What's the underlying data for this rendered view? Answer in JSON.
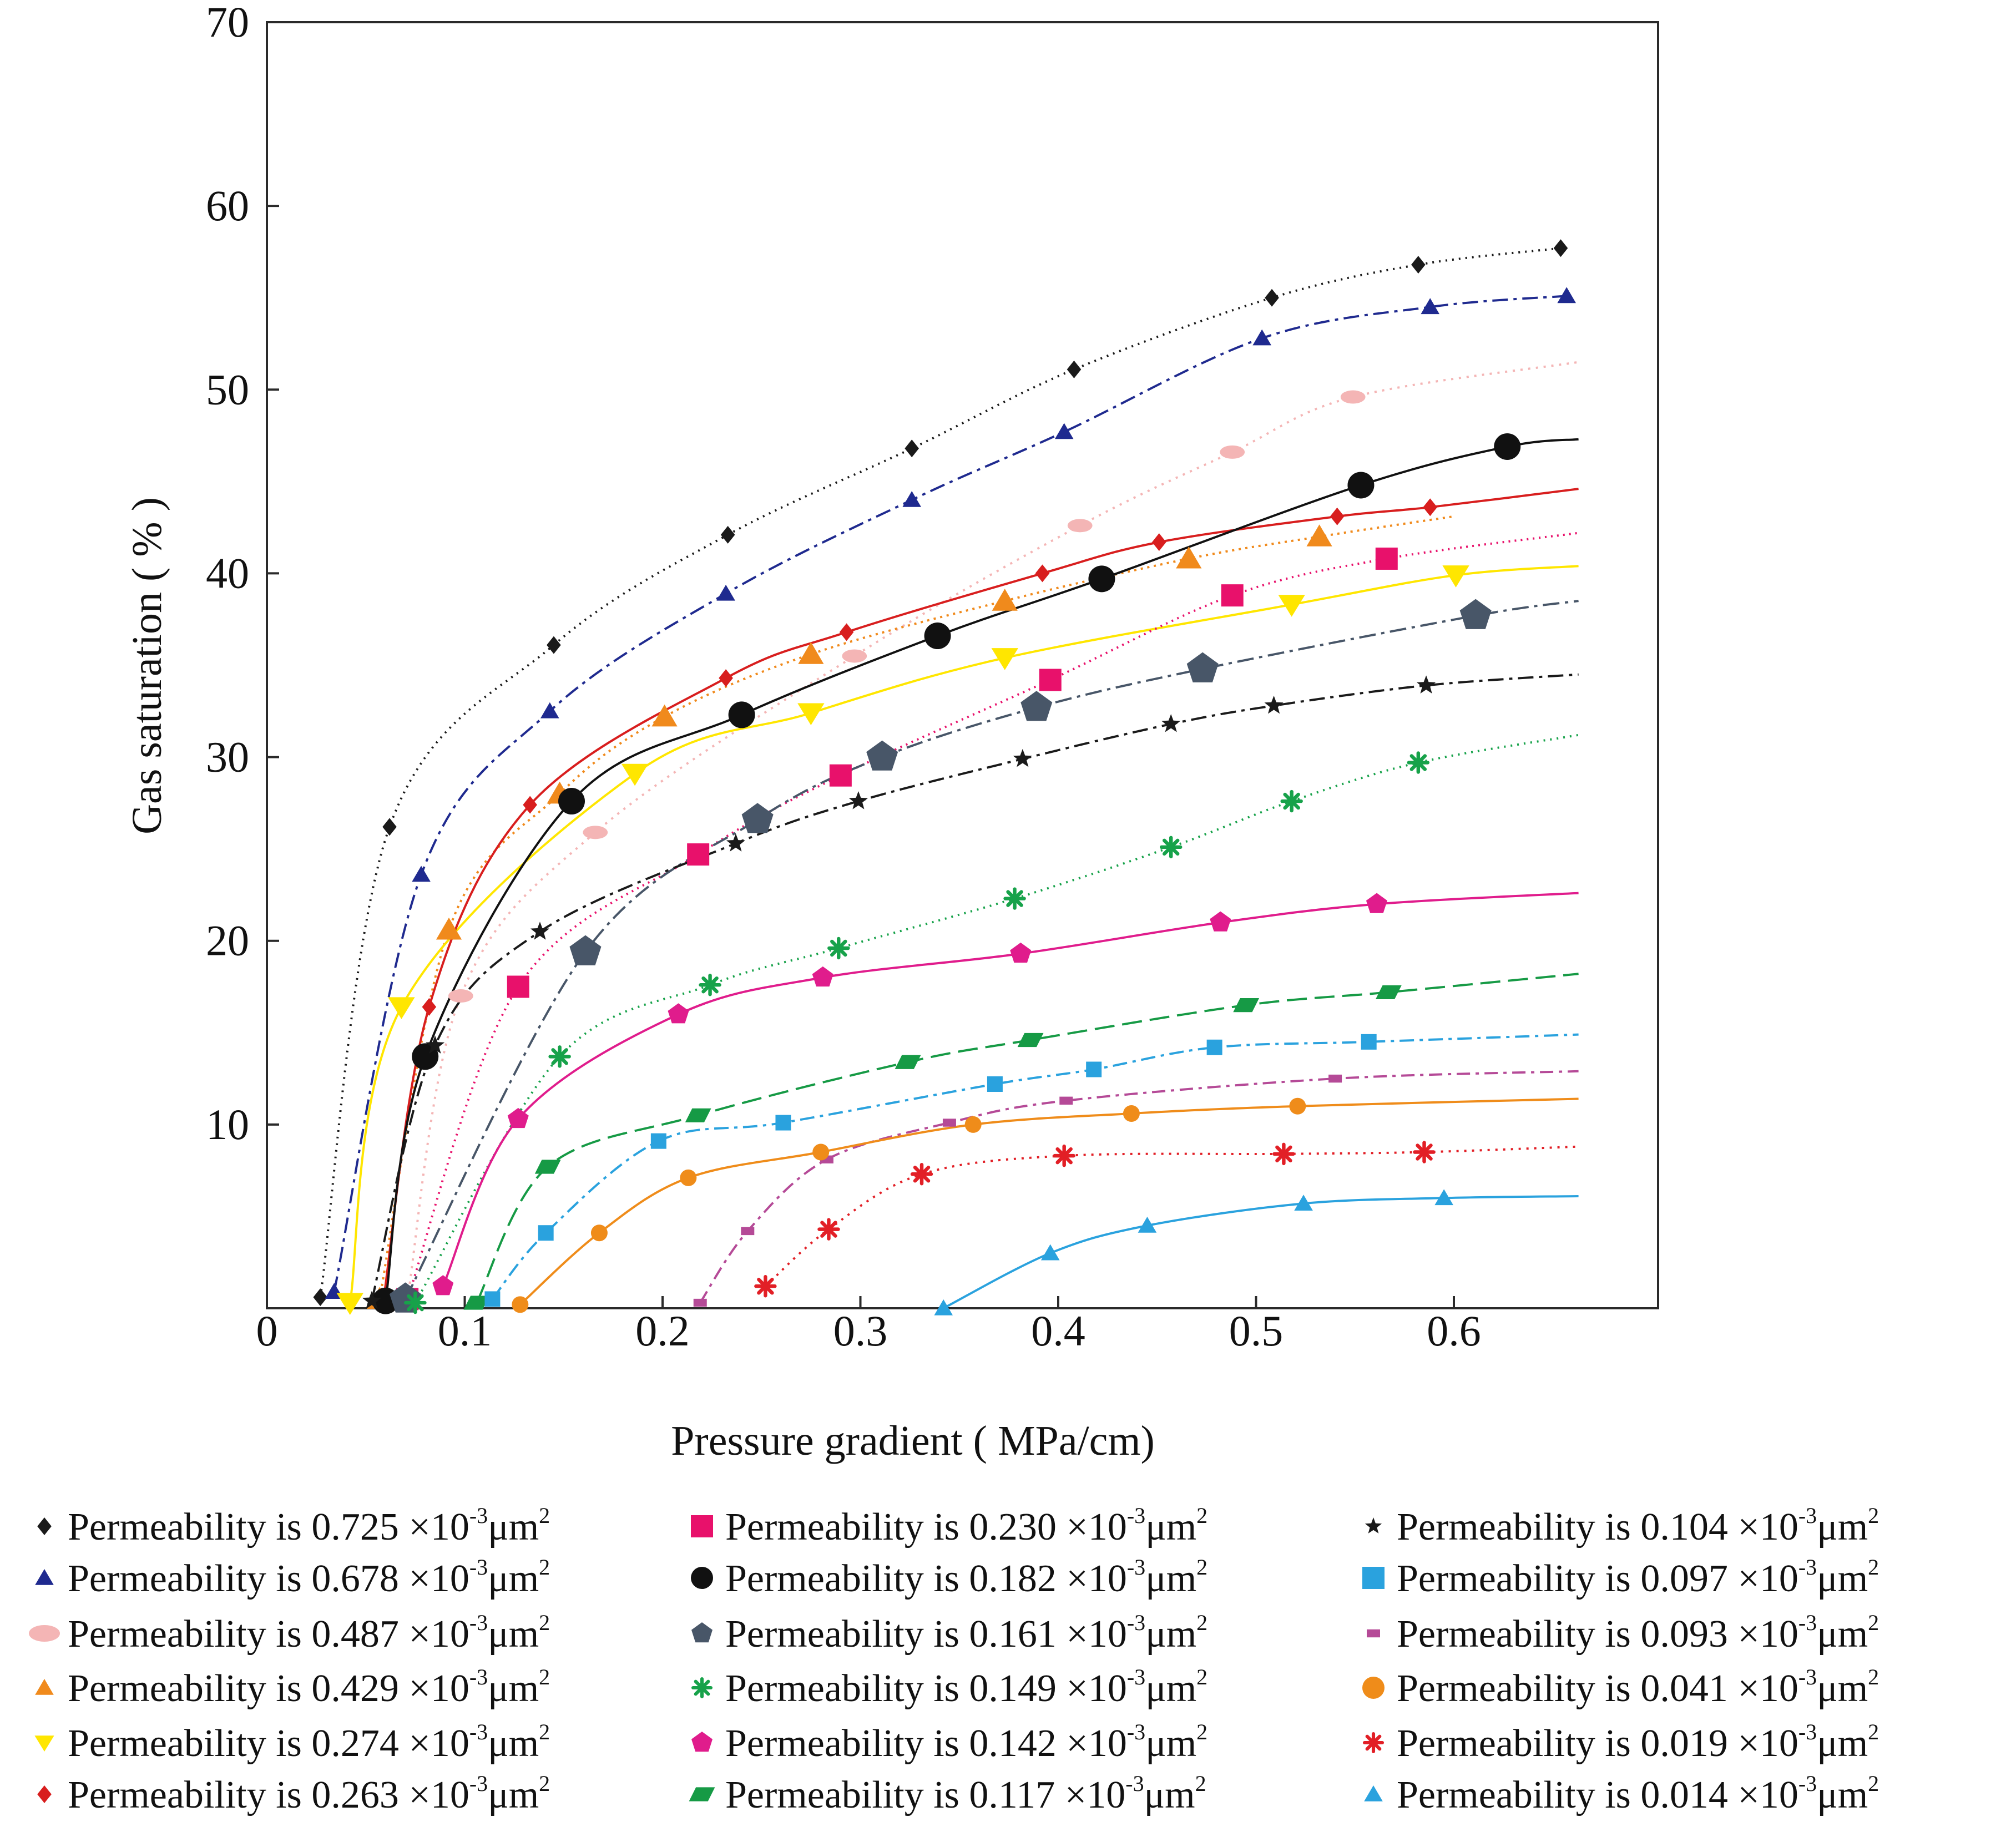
{
  "chart_data": {
    "type": "scatter",
    "xlabel": "Pressure gradient ( MPa/cm)",
    "ylabel": "Gas saturation ( % )",
    "xlim": [
      0,
      0.7
    ],
    "ylim": [
      0,
      70
    ],
    "x_ticks": [
      {
        "value": 0,
        "label": "0"
      },
      {
        "value": 0.1,
        "label": "0.1"
      },
      {
        "value": 0.2,
        "label": "0.2"
      },
      {
        "value": 0.3,
        "label": "0.3"
      },
      {
        "value": 0.4,
        "label": "0.4"
      },
      {
        "value": 0.5,
        "label": "0.5"
      },
      {
        "value": 0.6,
        "label": "0.6"
      }
    ],
    "y_ticks": [
      {
        "value": 10,
        "label": "10"
      },
      {
        "value": 20,
        "label": "20"
      },
      {
        "value": 30,
        "label": "30"
      },
      {
        "value": 40,
        "label": "40"
      },
      {
        "value": 50,
        "label": "50"
      },
      {
        "value": 60,
        "label": "60"
      },
      {
        "value": 70,
        "label": "70"
      }
    ],
    "legend_unit_base": "×10",
    "legend_unit_exp": "-3",
    "legend_unit_um": "μm",
    "legend_unit_sq": "2",
    "series": [
      {
        "name": "Permeability is 0.725",
        "color": "#1a1a1a",
        "marker": "diamond",
        "dash": "3,9",
        "points": [
          [
            0.027,
            0.6
          ],
          [
            0.062,
            26.2
          ],
          [
            0.145,
            36.1
          ],
          [
            0.233,
            42.1
          ],
          [
            0.326,
            46.8
          ],
          [
            0.408,
            51.1
          ],
          [
            0.508,
            55.0
          ],
          [
            0.582,
            56.8
          ],
          [
            0.654,
            57.7
          ]
        ],
        "curve_end": 0.655
      },
      {
        "name": "Permeability is 0.678",
        "color": "#1f2a8f",
        "marker": "triangle",
        "dash": "28,10,6,10",
        "points": [
          [
            0.034,
            0.9
          ],
          [
            0.078,
            23.6
          ],
          [
            0.143,
            32.5
          ],
          [
            0.232,
            38.9
          ],
          [
            0.326,
            44.0
          ],
          [
            0.403,
            47.7
          ],
          [
            0.503,
            52.8
          ],
          [
            0.588,
            54.5
          ],
          [
            0.657,
            55.1
          ]
        ],
        "curve_end": 0.66
      },
      {
        "name": "Permeability is 0.487",
        "color": "#f4b5b5",
        "marker": "ellipse",
        "dash": "4,10",
        "points": [
          [
            0.071,
            0.5
          ],
          [
            0.098,
            17.0
          ],
          [
            0.166,
            25.9
          ],
          [
            0.297,
            35.5
          ],
          [
            0.411,
            42.6
          ],
          [
            0.488,
            46.6
          ],
          [
            0.549,
            49.6
          ]
        ],
        "curve_end": 0.663,
        "curve_end_y": 51.5
      },
      {
        "name": "Permeability is 0.429",
        "color": "#f08a1c",
        "marker": "triangle",
        "dash": "4,8",
        "points": [
          [
            0.057,
            0.5
          ],
          [
            0.092,
            20.6
          ],
          [
            0.148,
            28.0
          ],
          [
            0.201,
            32.2
          ],
          [
            0.275,
            35.6
          ],
          [
            0.373,
            38.5
          ],
          [
            0.466,
            40.8
          ],
          [
            0.532,
            42.0
          ]
        ],
        "curve_end": 0.6,
        "curve_end_y": 43.1
      },
      {
        "name": "Permeability is 0.274",
        "color": "#ffe600",
        "marker": "triangle-down",
        "dash": "",
        "points": [
          [
            0.042,
            0.3
          ],
          [
            0.068,
            16.4
          ],
          [
            0.186,
            29.1
          ],
          [
            0.275,
            32.4
          ],
          [
            0.373,
            35.4
          ],
          [
            0.518,
            38.3
          ],
          [
            0.601,
            39.9
          ]
        ],
        "curve_end": 0.663,
        "curve_end_y": 40.4
      },
      {
        "name": "Permeability is 0.263",
        "color": "#d81e1e",
        "marker": "diamond",
        "dash": "",
        "points": [
          [
            0.059,
            0.5
          ],
          [
            0.082,
            16.4
          ],
          [
            0.133,
            27.4
          ],
          [
            0.232,
            34.3
          ],
          [
            0.293,
            36.8
          ],
          [
            0.392,
            40.0
          ],
          [
            0.451,
            41.7
          ],
          [
            0.541,
            43.1
          ],
          [
            0.588,
            43.6
          ]
        ],
        "curve_end": 0.663,
        "curve_end_y": 44.6
      },
      {
        "name": "Permeability is 0.230",
        "color": "#e8116b",
        "marker": "square",
        "dash": "3,8",
        "points": [
          [
            0.071,
            0.5
          ],
          [
            0.127,
            17.5
          ],
          [
            0.218,
            24.7
          ],
          [
            0.29,
            29.0
          ],
          [
            0.396,
            34.2
          ],
          [
            0.488,
            38.8
          ],
          [
            0.566,
            40.8
          ]
        ],
        "curve_end": 0.663,
        "curve_end_y": 42.2
      },
      {
        "name": "Permeability is 0.182",
        "color": "#111111",
        "marker": "circle",
        "dash": "",
        "points": [
          [
            0.06,
            0.4
          ],
          [
            0.08,
            13.7
          ],
          [
            0.154,
            27.6
          ],
          [
            0.24,
            32.3
          ],
          [
            0.339,
            36.6
          ],
          [
            0.422,
            39.7
          ],
          [
            0.553,
            44.8
          ],
          [
            0.627,
            46.9
          ]
        ],
        "curve_end": 0.663,
        "curve_end_y": 47.3
      },
      {
        "name": "Permeability is 0.161",
        "color": "#485668",
        "marker": "pentagon",
        "dash": "30,10,6,10",
        "points": [
          [
            0.07,
            0.5
          ],
          [
            0.161,
            19.4
          ],
          [
            0.248,
            26.6
          ],
          [
            0.311,
            30.0
          ],
          [
            0.389,
            32.7
          ],
          [
            0.473,
            34.8
          ],
          [
            0.611,
            37.7
          ]
        ],
        "curve_end": 0.663,
        "curve_end_y": 38.5
      },
      {
        "name": "Permeability is 0.149",
        "color": "#17a24a",
        "marker": "asterisk",
        "dash": "3,9",
        "points": [
          [
            0.075,
            0.3
          ],
          [
            0.148,
            13.7
          ],
          [
            0.224,
            17.6
          ],
          [
            0.289,
            19.6
          ],
          [
            0.378,
            22.3
          ],
          [
            0.457,
            25.1
          ],
          [
            0.518,
            27.6
          ],
          [
            0.582,
            29.7
          ]
        ],
        "curve_end": 0.663,
        "curve_end_y": 31.2
      },
      {
        "name": "Permeability is 0.142",
        "color": "#e01c8c",
        "marker": "pentagon",
        "dash": "",
        "points": [
          [
            0.089,
            1.2
          ],
          [
            0.127,
            10.3
          ],
          [
            0.208,
            16.0
          ],
          [
            0.281,
            18.0
          ],
          [
            0.381,
            19.3
          ],
          [
            0.482,
            21.0
          ],
          [
            0.561,
            22.0
          ]
        ],
        "curve_end": 0.663,
        "curve_end_y": 22.6
      },
      {
        "name": "Permeability is 0.117",
        "color": "#169a45",
        "marker": "parallelogram",
        "dash": "36,14",
        "points": [
          [
            0.106,
            0.3
          ],
          [
            0.142,
            7.7
          ],
          [
            0.218,
            10.5
          ],
          [
            0.324,
            13.4
          ],
          [
            0.386,
            14.6
          ],
          [
            0.495,
            16.5
          ],
          [
            0.567,
            17.2
          ]
        ],
        "curve_end": 0.663,
        "curve_end_y": 18.2
      },
      {
        "name": "Permeability is 0.104",
        "color": "#1a1a1a",
        "marker": "star",
        "dash": "28,10,6,10",
        "points": [
          [
            0.053,
            0.4
          ],
          [
            0.085,
            14.3
          ],
          [
            0.138,
            20.5
          ],
          [
            0.237,
            25.3
          ],
          [
            0.299,
            27.6
          ],
          [
            0.382,
            29.9
          ],
          [
            0.457,
            31.8
          ],
          [
            0.509,
            32.8
          ],
          [
            0.586,
            33.9
          ]
        ],
        "curve_end": 0.663,
        "curve_end_y": 34.5
      },
      {
        "name": "Permeability is 0.097",
        "color": "#2aa2de",
        "marker": "square",
        "dash": "26,10,6,10",
        "points": [
          [
            0.114,
            0.5
          ],
          [
            0.141,
            4.1
          ],
          [
            0.198,
            9.1
          ],
          [
            0.261,
            10.1
          ],
          [
            0.368,
            12.2
          ],
          [
            0.418,
            13.0
          ],
          [
            0.479,
            14.2
          ],
          [
            0.557,
            14.5
          ]
        ],
        "curve_end": 0.663,
        "curve_end_y": 14.9
      },
      {
        "name": "Permeability is 0.093",
        "color": "#b54a97",
        "marker": "small-square",
        "dash": "24,10,6,10",
        "points": [
          [
            0.219,
            0.3
          ],
          [
            0.243,
            4.2
          ],
          [
            0.283,
            8.1
          ],
          [
            0.345,
            10.1
          ],
          [
            0.404,
            11.3
          ],
          [
            0.54,
            12.5
          ]
        ],
        "curve_end": 0.663,
        "curve_end_y": 12.9
      },
      {
        "name": "Permeability is 0.041",
        "color": "#ef8c1a",
        "marker": "circle",
        "dash": "",
        "points": [
          [
            0.128,
            0.2
          ],
          [
            0.168,
            4.1
          ],
          [
            0.213,
            7.1
          ],
          [
            0.28,
            8.5
          ],
          [
            0.357,
            10.0
          ],
          [
            0.437,
            10.6
          ],
          [
            0.521,
            11.0
          ]
        ],
        "curve_end": 0.663,
        "curve_end_y": 11.4
      },
      {
        "name": "Permeability is 0.019",
        "color": "#e21f26",
        "marker": "asterisk",
        "dash": "4,10",
        "points": [
          [
            0.252,
            1.2
          ],
          [
            0.284,
            4.3
          ],
          [
            0.331,
            7.3
          ],
          [
            0.403,
            8.3
          ],
          [
            0.514,
            8.4
          ],
          [
            0.585,
            8.5
          ]
        ],
        "curve_end": 0.663,
        "curve_end_y": 8.8
      },
      {
        "name": "Permeability is 0.014",
        "color": "#2aa2de",
        "marker": "triangle",
        "dash": "",
        "points": [
          [
            0.342,
            0.0
          ],
          [
            0.396,
            3.0
          ],
          [
            0.445,
            4.5
          ],
          [
            0.524,
            5.7
          ],
          [
            0.595,
            6.0
          ]
        ],
        "curve_end": 0.663,
        "curve_end_y": 6.1
      }
    ],
    "legend_columns": [
      [
        0,
        1,
        2,
        3,
        4,
        5
      ],
      [
        6,
        7,
        8,
        9,
        10,
        11
      ],
      [
        12,
        13,
        14,
        15,
        16,
        17
      ]
    ]
  }
}
